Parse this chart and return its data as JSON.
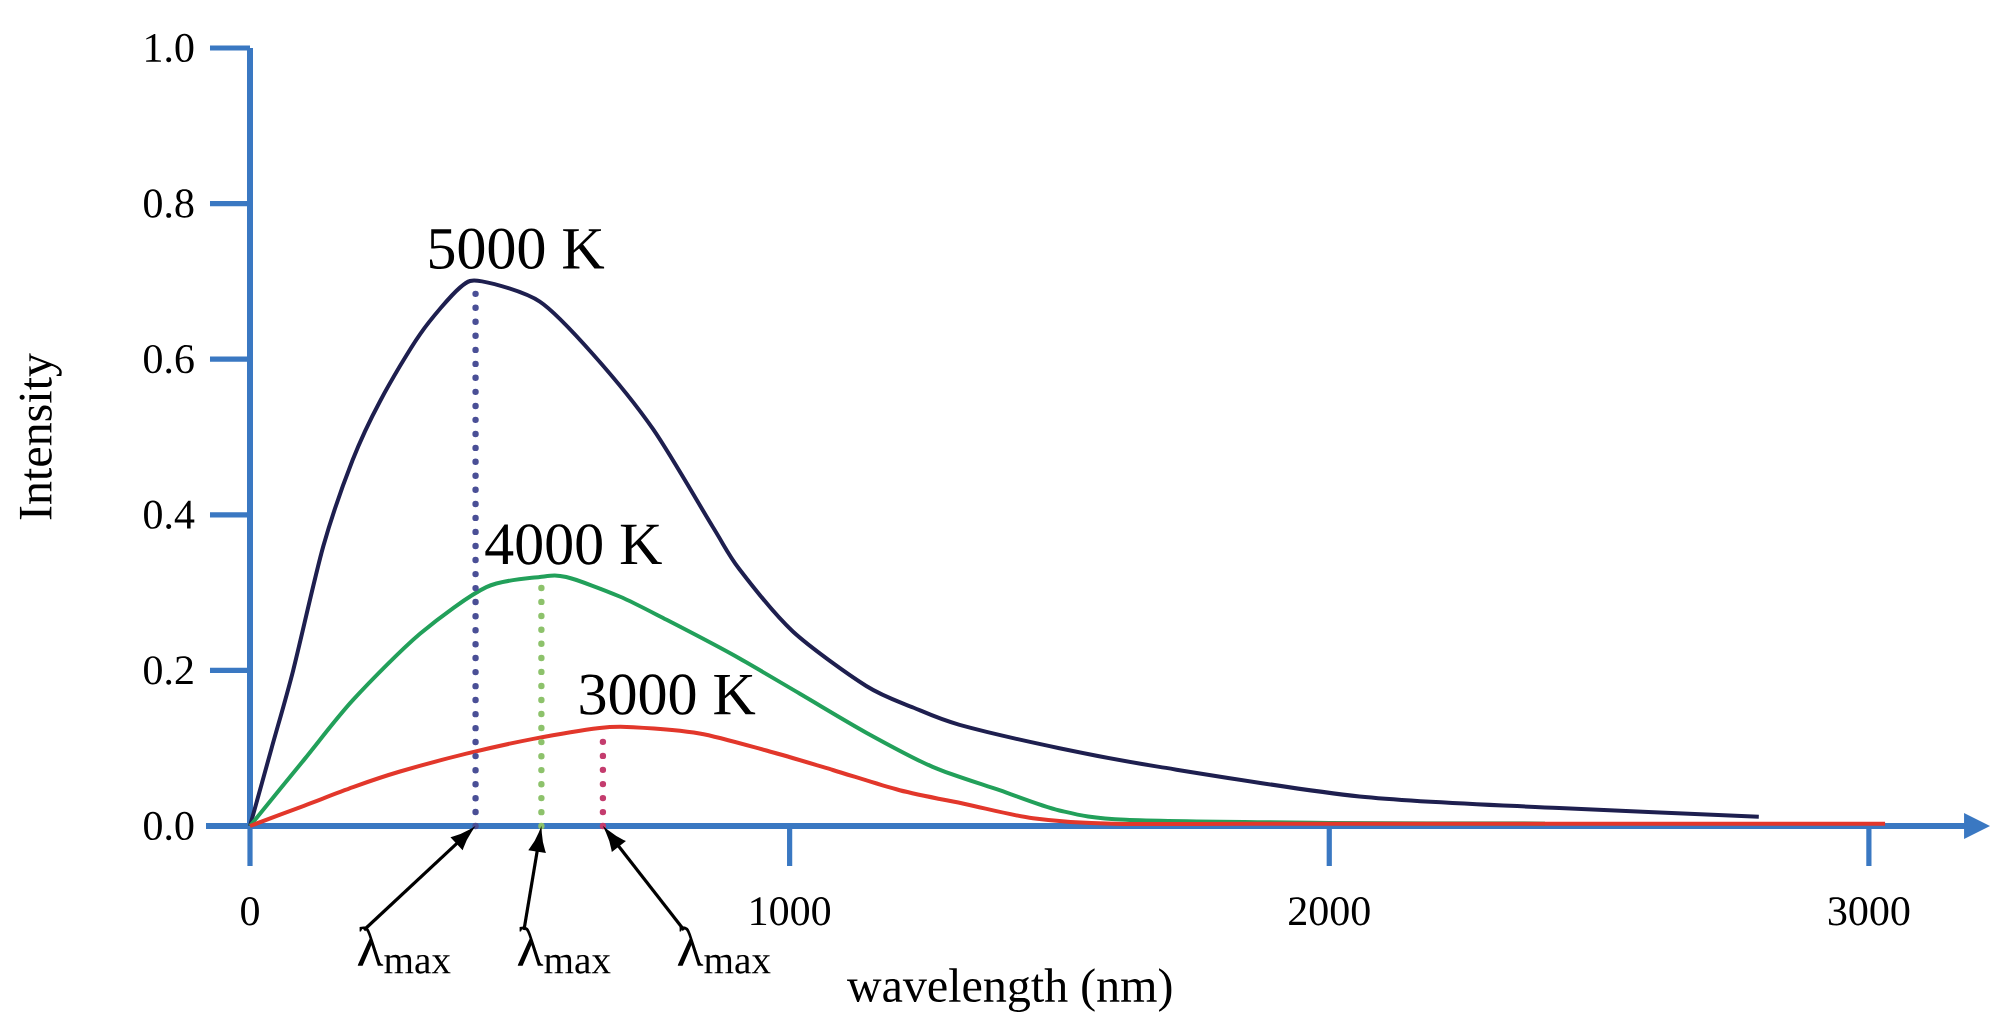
{
  "chart_data": {
    "type": "line",
    "xlabel": "wavelength (nm)",
    "ylabel": "Intensity",
    "xlim": [
      0,
      3180
    ],
    "ylim": [
      0,
      1.0
    ],
    "xticks": [
      0,
      1000,
      2000,
      3000
    ],
    "yticks": [
      {
        "value": 0,
        "label": "0.0"
      },
      0.2,
      0.4,
      0.6,
      0.8,
      {
        "value": 1.0,
        "label": "1.0"
      }
    ],
    "series": [
      {
        "name": "5000 K",
        "color": "#1e1f4f",
        "x": [
          0,
          40,
          80,
          136,
          190,
          241,
          315,
          389,
          430,
          537,
          636,
          747,
          858,
          907,
          1006,
          1142,
          1230,
          1315,
          1500,
          1685,
          2056,
          2426,
          2796
        ],
        "values": [
          0,
          0.1,
          0.2,
          0.36,
          0.47,
          0.546,
          0.632,
          0.692,
          0.7,
          0.674,
          0.606,
          0.51,
          0.384,
          0.33,
          0.25,
          0.18,
          0.152,
          0.13,
          0.1,
          0.076,
          0.038,
          0.023,
          0.012
        ]
      },
      {
        "name": "4000 K",
        "color": "#22a05a",
        "x": [
          0,
          100,
          191,
          315,
          438,
          537,
          586,
          685,
          772,
          895,
          1019,
          1142,
          1265,
          1389,
          1500,
          1623,
          2000,
          2400
        ],
        "values": [
          0,
          0.085,
          0.162,
          0.247,
          0.307,
          0.32,
          0.32,
          0.295,
          0.265,
          0.22,
          0.17,
          0.12,
          0.076,
          0.046,
          0.02,
          0.008,
          0.004,
          0.003
        ]
      },
      {
        "name": "3000 K",
        "color": "#e2372b",
        "x": [
          0,
          100,
          191,
          278,
          401,
          525,
          648,
          710,
          833,
          957,
          1080,
          1204,
          1327,
          1451,
          1600,
          2000,
          2500,
          3030
        ],
        "values": [
          0,
          0.026,
          0.05,
          0.07,
          0.093,
          0.112,
          0.126,
          0.127,
          0.119,
          0.097,
          0.072,
          0.046,
          0.028,
          0.01,
          0.003,
          0.003,
          0.003,
          0.003
        ]
      },
      {
        "color": "#4a4f96",
        "line_style": "dotted",
        "x": [
          418,
          418
        ],
        "values": [
          0,
          0.7
        ]
      },
      {
        "color": "#8dc26b",
        "line_style": "dotted",
        "x": [
          540,
          540
        ],
        "values": [
          0,
          0.32
        ]
      },
      {
        "color": "#c43c6e",
        "line_style": "dotted",
        "x": [
          654,
          654
        ],
        "values": [
          0,
          0.125
        ]
      }
    ],
    "annotations": [
      {
        "text": "λ$_{max}$",
        "x": 418,
        "y": 0
      },
      {
        "text": "λ$_{max}$",
        "x": 540,
        "y": 0
      },
      {
        "text": "λ$_{max}$",
        "x": 654,
        "y": 0
      }
    ]
  }
}
